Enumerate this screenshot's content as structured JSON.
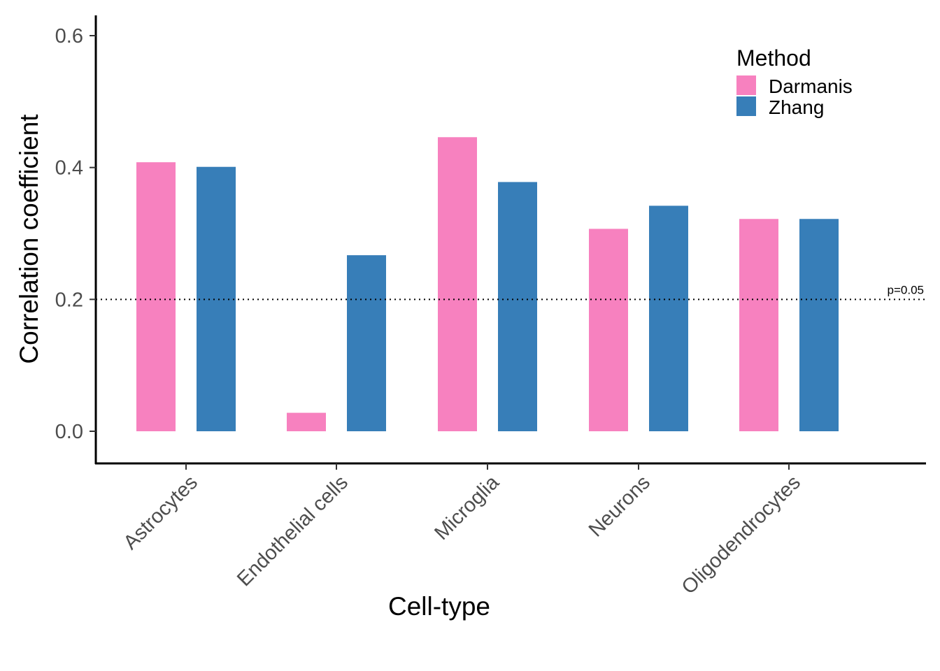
{
  "chart_data": {
    "type": "bar",
    "title": "",
    "xlabel": "Cell-type",
    "ylabel": "Correlation coefficient",
    "ylim": [
      -0.05,
      0.6
    ],
    "yticks": [
      "0.0",
      "0.2",
      "0.4",
      "0.6"
    ],
    "ytick_values": [
      0.0,
      0.2,
      0.4,
      0.6
    ],
    "categories": [
      "Astrocytes",
      "Endothelial cells",
      "Microglia",
      "Neurons",
      "Oligodendrocytes"
    ],
    "series": [
      {
        "name": "Darmanis",
        "color": "#F781BF",
        "values": [
          0.408,
          0.028,
          0.446,
          0.307,
          0.322
        ]
      },
      {
        "name": "Zhang",
        "color": "#377EB8",
        "values": [
          0.401,
          0.267,
          0.378,
          0.342,
          0.322
        ]
      }
    ],
    "legend": {
      "title": "Method",
      "position": "top-right"
    },
    "reference_line": {
      "value": 0.2,
      "label": "p=0.05",
      "style": "dotted"
    },
    "grid": false
  }
}
